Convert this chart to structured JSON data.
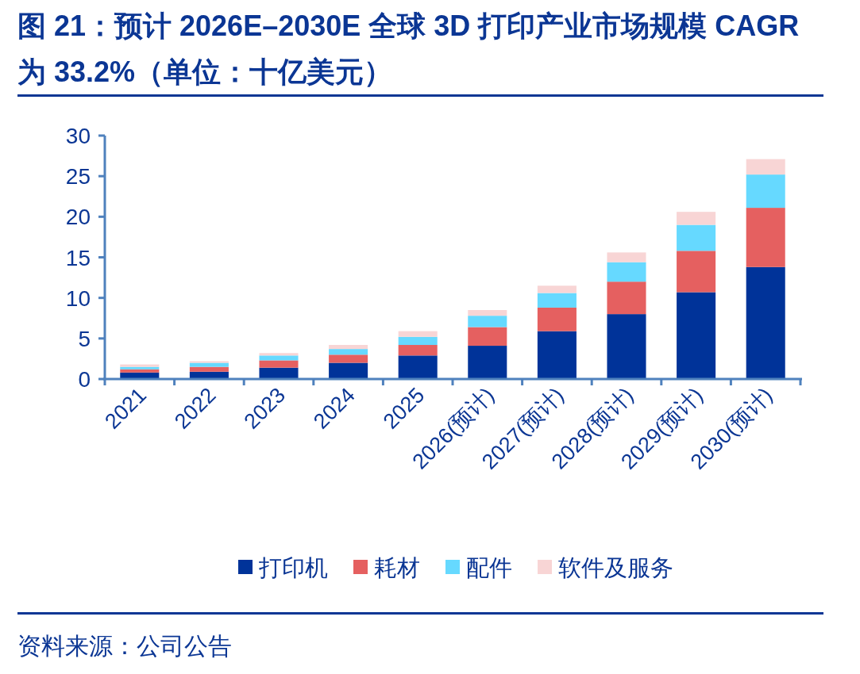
{
  "chart_data": {
    "type": "bar",
    "title": "图 21：预计 2026E–2030E 全球 3D 打印产业市场规模 CAGR 为 33.2%（单位：十亿美元）",
    "categories": [
      "2021",
      "2022",
      "2023",
      "2024",
      "2025",
      "2026(预计)",
      "2027(预计)",
      "2028(预计)",
      "2029(预计)",
      "2030(预计)"
    ],
    "series": [
      {
        "name": "打印机",
        "color": "#003399",
        "values": [
          0.8,
          0.9,
          1.4,
          2.0,
          2.9,
          4.1,
          5.9,
          8.0,
          10.7,
          13.8
        ]
      },
      {
        "name": "耗材",
        "color": "#e56060",
        "values": [
          0.4,
          0.6,
          0.9,
          1.0,
          1.3,
          2.3,
          2.9,
          4.0,
          5.1,
          7.3
        ]
      },
      {
        "name": "配件",
        "color": "#66d9ff",
        "values": [
          0.3,
          0.5,
          0.6,
          0.7,
          1.0,
          1.4,
          1.8,
          2.4,
          3.2,
          4.1
        ]
      },
      {
        "name": "软件及服务",
        "color": "#f8d5d5",
        "values": [
          0.3,
          0.2,
          0.3,
          0.5,
          0.7,
          0.7,
          0.9,
          1.2,
          1.6,
          1.9
        ]
      }
    ],
    "stacked": true,
    "ylim": [
      0,
      30
    ],
    "yticks": [
      0,
      5,
      10,
      15,
      20,
      25,
      30
    ],
    "grid": false,
    "legend": "bottom",
    "annotations": [
      "资料来源：公司公告"
    ]
  }
}
